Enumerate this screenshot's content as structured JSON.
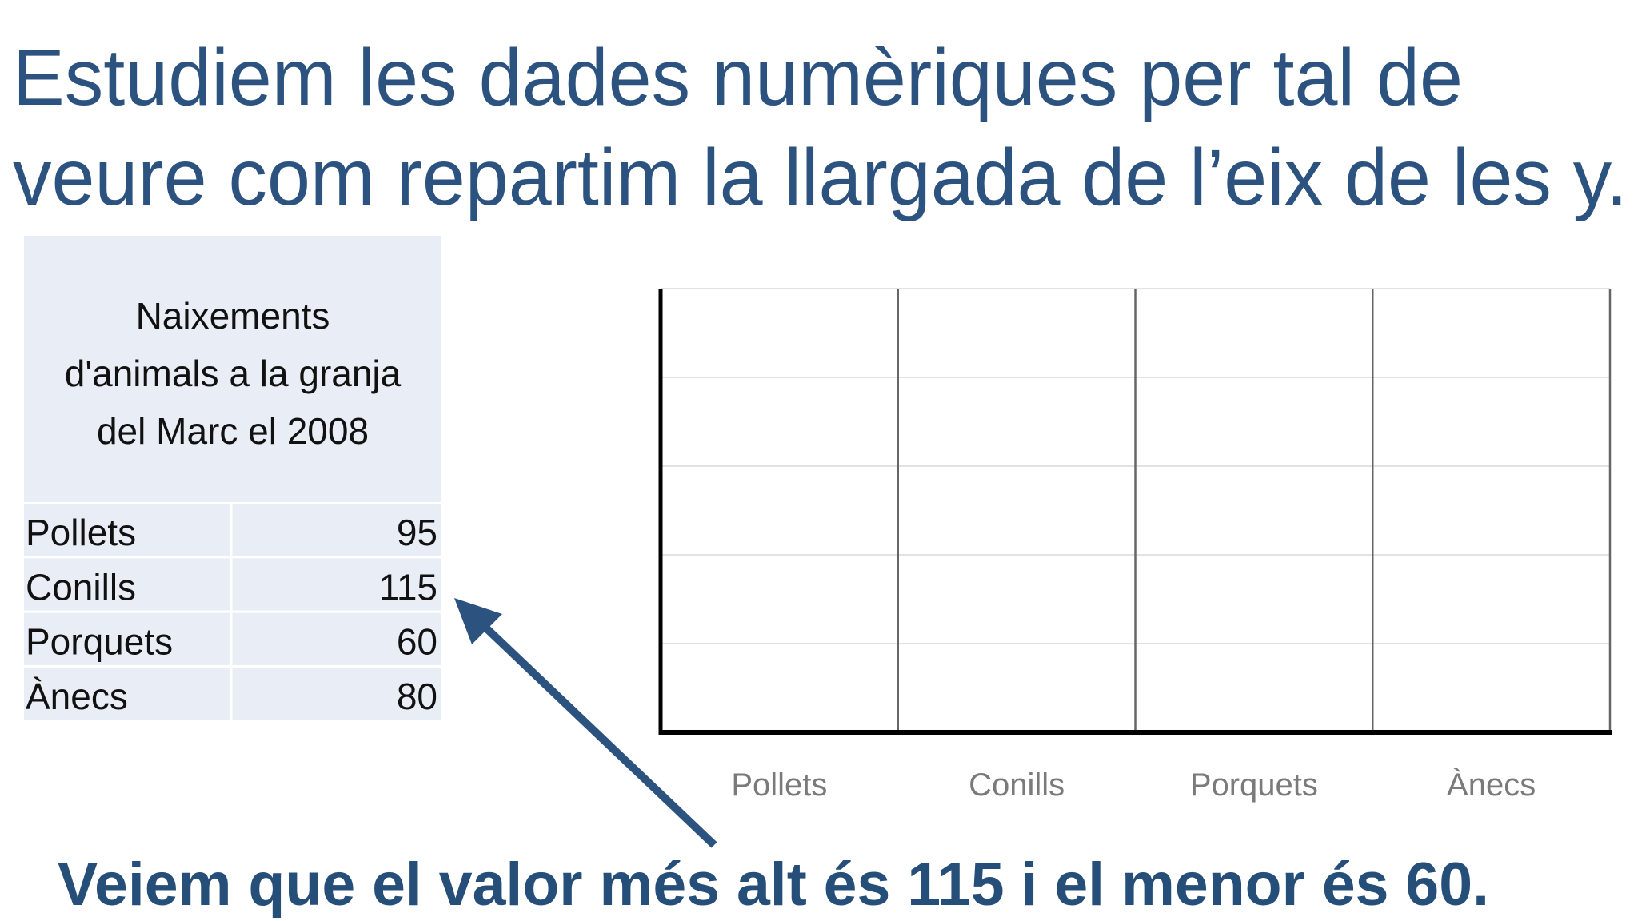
{
  "title": [
    "Estudiem les dades numèriques per tal de",
    "veure com repartim la llargada de l’eix de les y."
  ],
  "table": {
    "header": [
      "Naixements",
      "d'animals a la granja",
      "del Marc el 2008"
    ],
    "rows": [
      [
        "Pollets",
        95
      ],
      [
        "Conills",
        115
      ],
      [
        "Porquets",
        60
      ],
      [
        "Ànecs",
        80
      ]
    ]
  },
  "chart": {
    "categories": [
      "Pollets",
      "Conills",
      "Porquets",
      "Ànecs"
    ]
  },
  "caption": "Veiem que el valor més alt és 115 i el menor és 60."
}
